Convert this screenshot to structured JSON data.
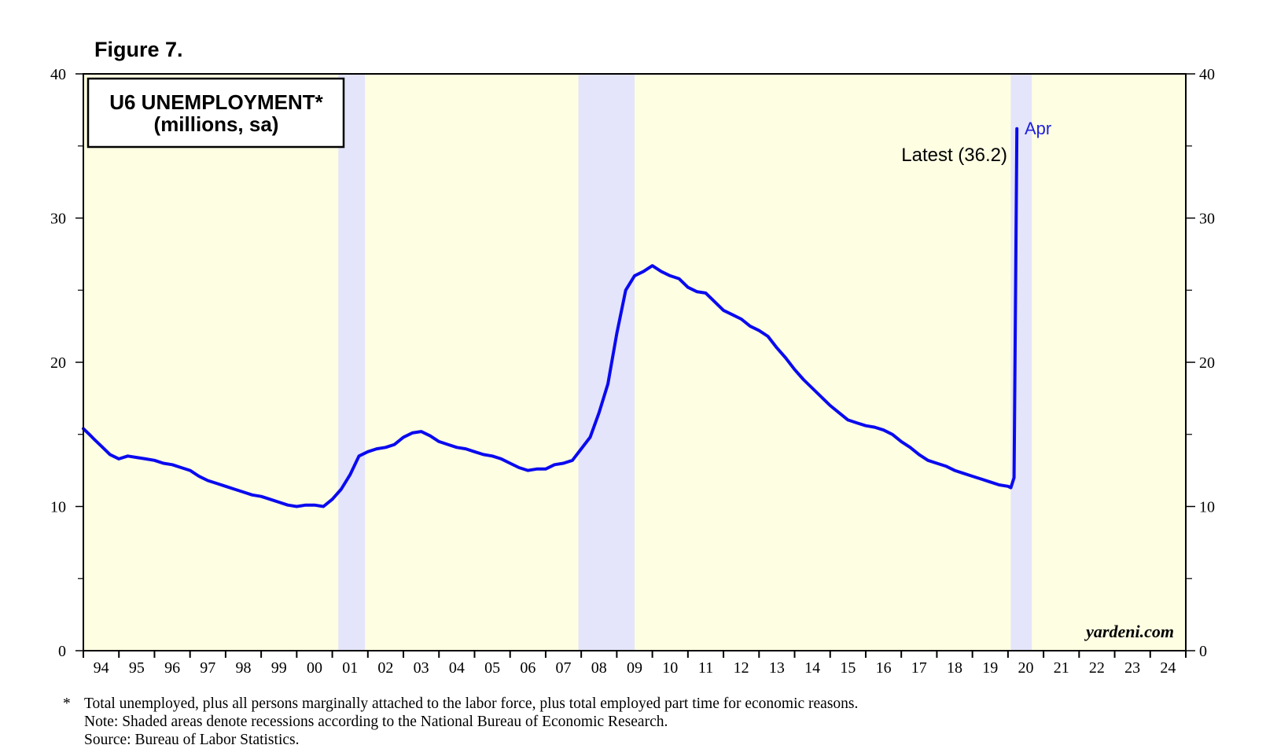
{
  "figure_label": "Figure 7.",
  "chart_data": {
    "type": "line",
    "title": "U6 UNEMPLOYMENT*",
    "subtitle": "(millions, sa)",
    "xlabel": "",
    "ylabel": "",
    "ylim": [
      0,
      40
    ],
    "yticks": [
      0,
      10,
      20,
      30,
      40
    ],
    "xlim": [
      1994.0,
      2025.0
    ],
    "x_tick_labels": [
      "94",
      "95",
      "96",
      "97",
      "98",
      "99",
      "00",
      "01",
      "02",
      "03",
      "04",
      "05",
      "06",
      "07",
      "08",
      "09",
      "10",
      "11",
      "12",
      "13",
      "14",
      "15",
      "16",
      "17",
      "18",
      "19",
      "20",
      "21",
      "22",
      "23",
      "24"
    ],
    "recessions": [
      [
        2001.17,
        2001.92
      ],
      [
        2007.92,
        2009.5
      ],
      [
        2020.08,
        2020.67
      ]
    ],
    "colors": {
      "line": "#0a0aef",
      "plot_bg": "#fefee3",
      "recession": "#e4e4fb",
      "annotation": "#2020dd"
    },
    "series": [
      {
        "name": "U6 Unemployment",
        "x": [
          1994.0,
          1994.17,
          1994.33,
          1994.5,
          1994.75,
          1995.0,
          1995.25,
          1995.5,
          1995.75,
          1996.0,
          1996.25,
          1996.5,
          1996.75,
          1997.0,
          1997.25,
          1997.5,
          1997.75,
          1998.0,
          1998.25,
          1998.5,
          1998.75,
          1999.0,
          1999.25,
          1999.5,
          1999.75,
          2000.0,
          2000.25,
          2000.5,
          2000.75,
          2001.0,
          2001.25,
          2001.5,
          2001.75,
          2002.0,
          2002.25,
          2002.5,
          2002.75,
          2003.0,
          2003.25,
          2003.5,
          2003.75,
          2004.0,
          2004.25,
          2004.5,
          2004.75,
          2005.0,
          2005.25,
          2005.5,
          2005.75,
          2006.0,
          2006.25,
          2006.5,
          2006.75,
          2007.0,
          2007.25,
          2007.5,
          2007.75,
          2008.0,
          2008.25,
          2008.5,
          2008.75,
          2009.0,
          2009.25,
          2009.5,
          2009.75,
          2010.0,
          2010.25,
          2010.5,
          2010.75,
          2011.0,
          2011.25,
          2011.5,
          2011.75,
          2012.0,
          2012.25,
          2012.5,
          2012.75,
          2013.0,
          2013.25,
          2013.5,
          2013.75,
          2014.0,
          2014.25,
          2014.5,
          2014.75,
          2015.0,
          2015.25,
          2015.5,
          2015.75,
          2016.0,
          2016.25,
          2016.5,
          2016.75,
          2017.0,
          2017.25,
          2017.5,
          2017.75,
          2018.0,
          2018.25,
          2018.5,
          2018.75,
          2019.0,
          2019.25,
          2019.5,
          2019.75,
          2020.0,
          2020.08,
          2020.17,
          2020.25
        ],
        "values": [
          15.4,
          15.0,
          14.6,
          14.2,
          13.6,
          13.3,
          13.5,
          13.4,
          13.3,
          13.2,
          13.0,
          12.9,
          12.7,
          12.5,
          12.1,
          11.8,
          11.6,
          11.4,
          11.2,
          11.0,
          10.8,
          10.7,
          10.5,
          10.3,
          10.1,
          10.0,
          10.1,
          10.1,
          10.0,
          10.5,
          11.2,
          12.2,
          13.5,
          13.8,
          14.0,
          14.1,
          14.3,
          14.8,
          15.1,
          15.2,
          14.9,
          14.5,
          14.3,
          14.1,
          14.0,
          13.8,
          13.6,
          13.5,
          13.3,
          13.0,
          12.7,
          12.5,
          12.6,
          12.6,
          12.9,
          13.0,
          13.2,
          14.0,
          14.8,
          16.5,
          18.5,
          22.0,
          25.0,
          26.0,
          26.3,
          26.7,
          26.3,
          26.0,
          25.8,
          25.2,
          24.9,
          24.8,
          24.2,
          23.6,
          23.3,
          23.0,
          22.5,
          22.2,
          21.8,
          21.0,
          20.3,
          19.5,
          18.8,
          18.2,
          17.6,
          17.0,
          16.5,
          16.0,
          15.8,
          15.6,
          15.5,
          15.3,
          15.0,
          14.5,
          14.1,
          13.6,
          13.2,
          13.0,
          12.8,
          12.5,
          12.3,
          12.1,
          11.9,
          11.7,
          11.5,
          11.4,
          11.3,
          12.0,
          36.2
        ]
      }
    ],
    "annotations": {
      "latest": "Latest (36.2)",
      "latest_month": "Apr"
    },
    "source_watermark": "yardeni.com"
  },
  "footnotes": {
    "marker": "*",
    "definition": "Total unemployed, plus all persons marginally attached to the labor force, plus total employed part time for economic reasons.",
    "note": "Note: Shaded areas denote recessions according to the National Bureau of Economic Research.",
    "source": "Source: Bureau of Labor Statistics."
  }
}
